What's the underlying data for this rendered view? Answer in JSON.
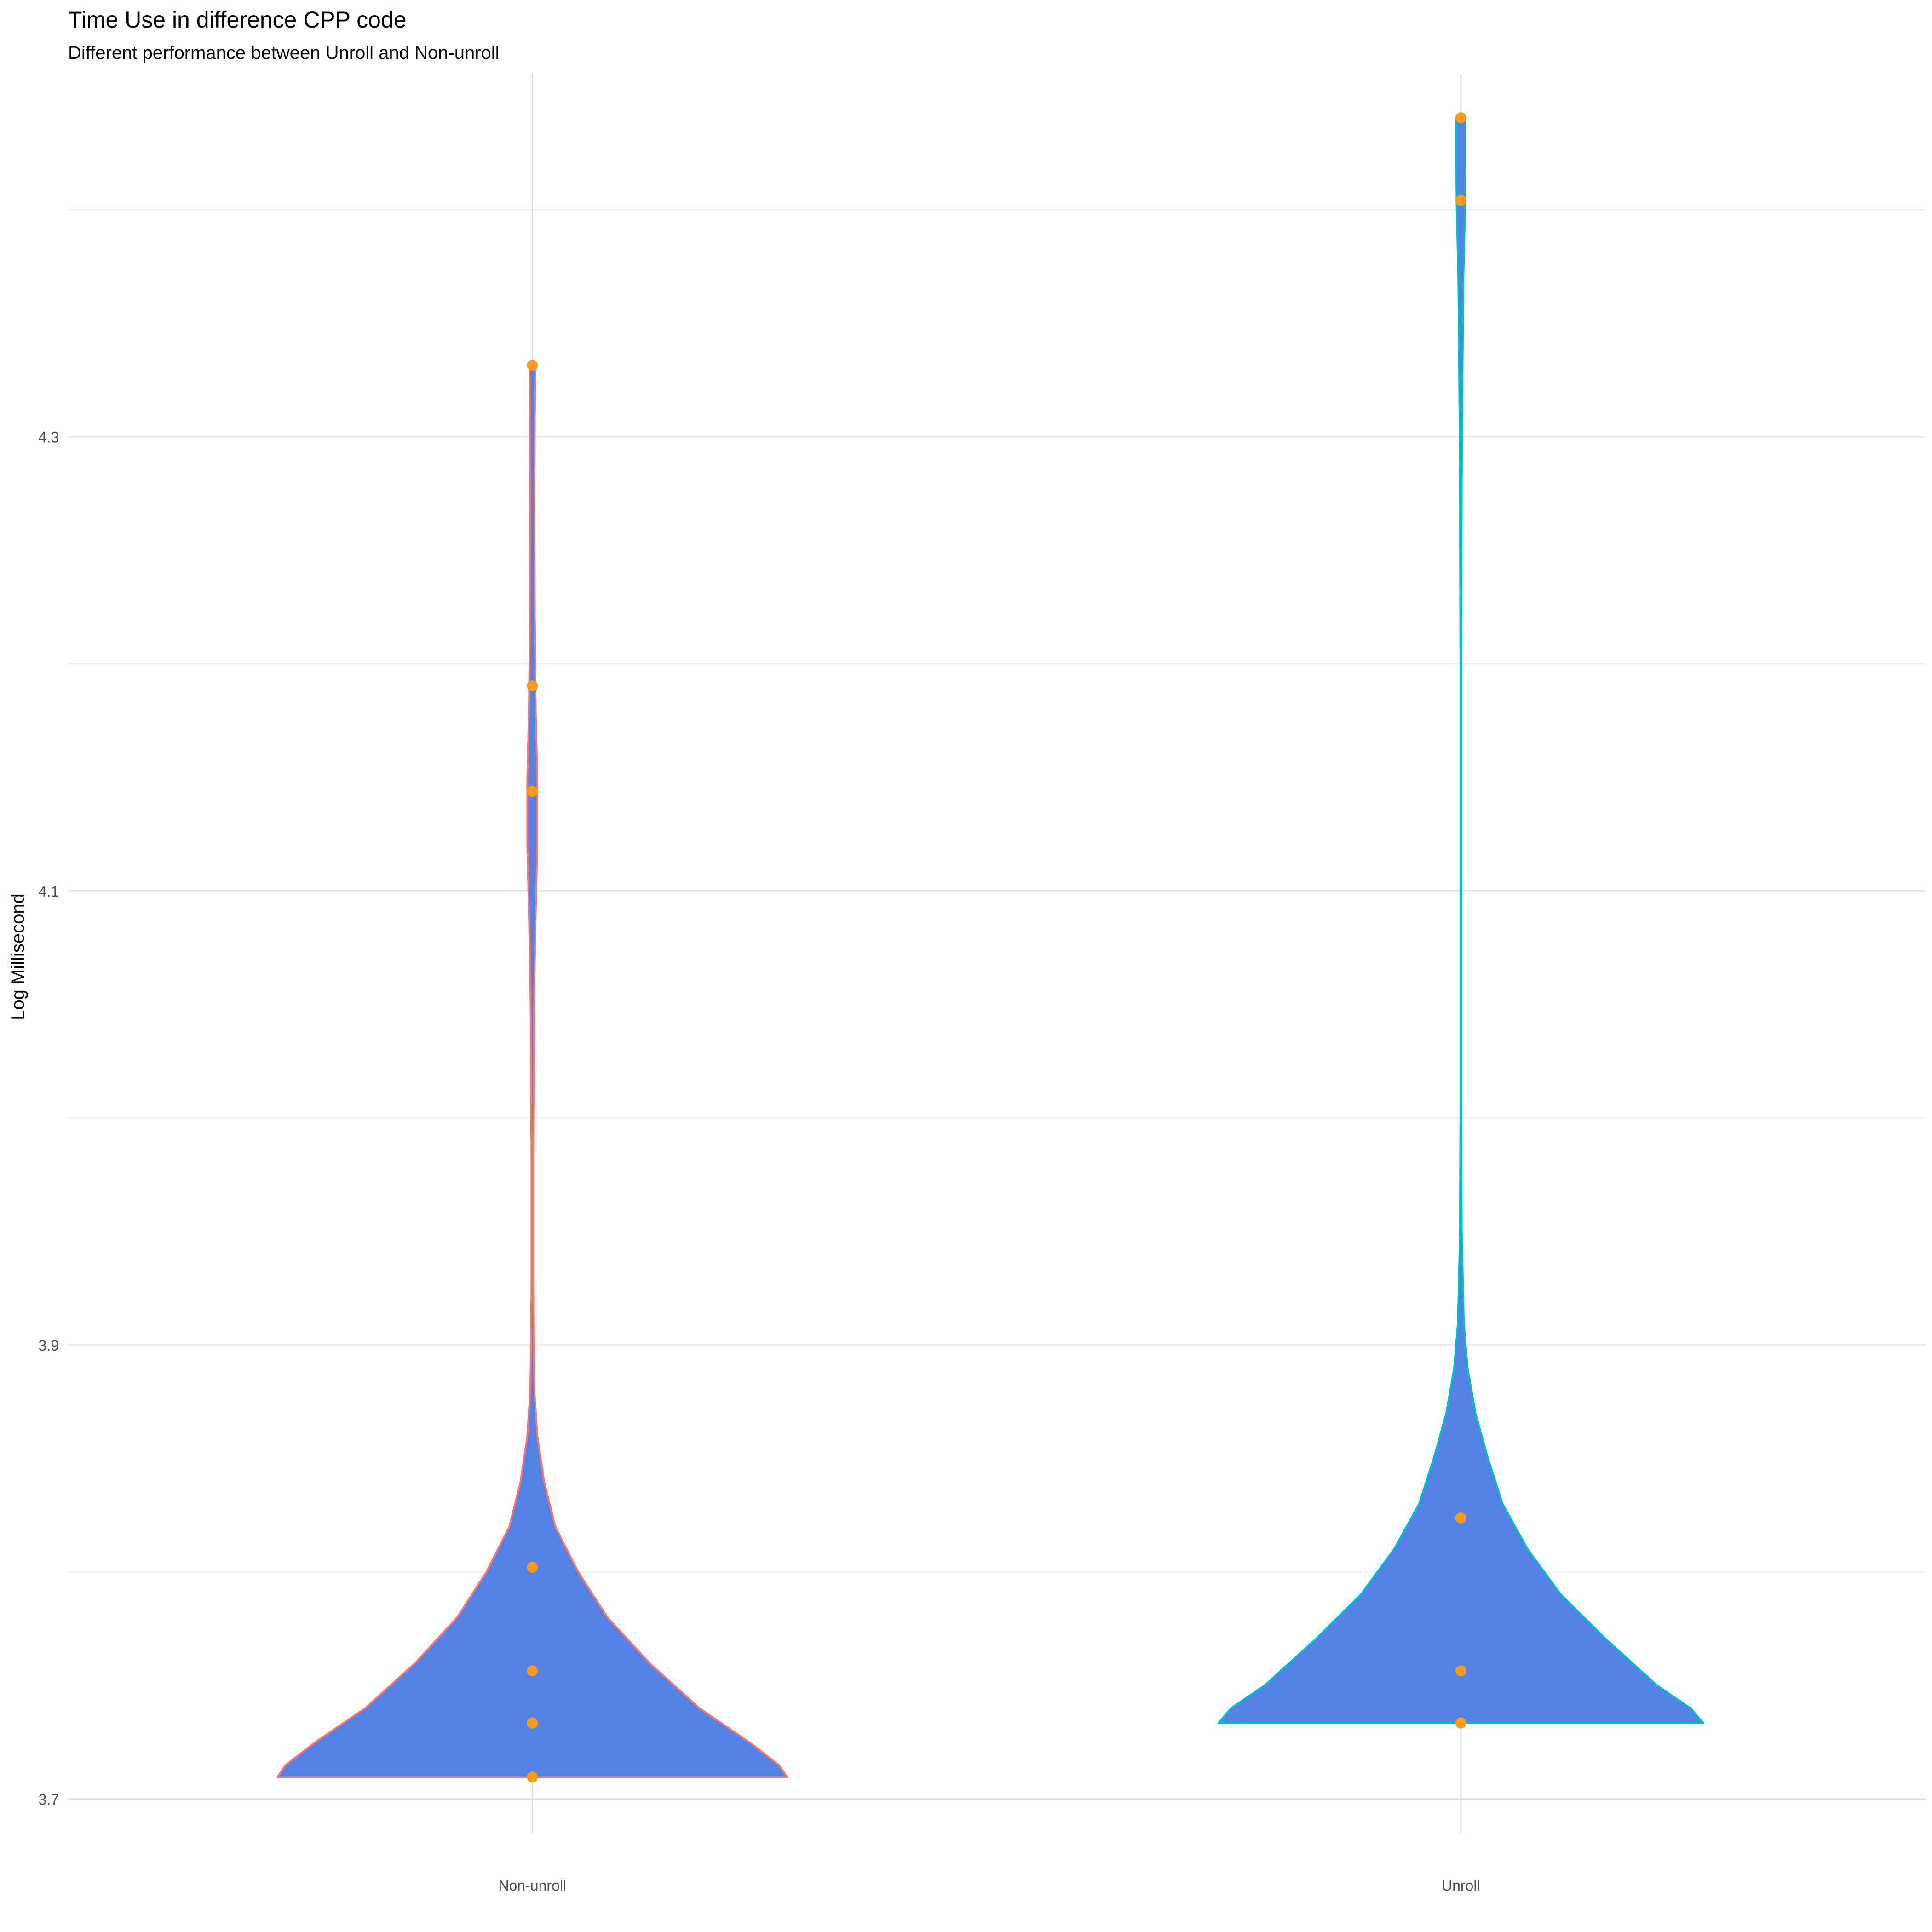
{
  "chart_data": {
    "type": "violin",
    "title": "Time Use in difference CPP code",
    "subtitle": "Different performance between Unroll and Non-unroll",
    "xlabel": "",
    "ylabel": "Log Millisecond",
    "categories": [
      "Non-unroll",
      "Unroll"
    ],
    "ylim": [
      3.685,
      4.46
    ],
    "yticks": [
      3.7,
      3.9,
      4.1,
      4.3
    ],
    "grid": true,
    "fill_color": "#5580E6",
    "outline_colors": [
      "#F8766D",
      "#00BFC4"
    ],
    "point_color": "#F79A1E",
    "series": [
      {
        "category": "Non-unroll",
        "points": [
          3.7097,
          3.7335,
          3.7565,
          3.8021,
          4.1439,
          4.1903,
          4.3315
        ],
        "density_profile": [
          [
            3.7097,
            0.61
          ],
          [
            3.715,
            0.59
          ],
          [
            3.725,
            0.52
          ],
          [
            3.74,
            0.4
          ],
          [
            3.76,
            0.28
          ],
          [
            3.78,
            0.18
          ],
          [
            3.8,
            0.11
          ],
          [
            3.82,
            0.055
          ],
          [
            3.84,
            0.028
          ],
          [
            3.86,
            0.012
          ],
          [
            3.88,
            0.005
          ],
          [
            3.9,
            0.003
          ],
          [
            3.93,
            0.002
          ],
          [
            3.98,
            0.002
          ],
          [
            4.05,
            0.004
          ],
          [
            4.09,
            0.008
          ],
          [
            4.12,
            0.012
          ],
          [
            4.15,
            0.012
          ],
          [
            4.18,
            0.008
          ],
          [
            4.22,
            0.006
          ],
          [
            4.27,
            0.005
          ],
          [
            4.31,
            0.006
          ],
          [
            4.3315,
            0.007
          ]
        ]
      },
      {
        "category": "Unroll",
        "points": [
          3.7335,
          3.7565,
          3.8238,
          4.4042,
          4.4405
        ],
        "density_profile": [
          [
            3.7335,
            0.58
          ],
          [
            3.74,
            0.55
          ],
          [
            3.75,
            0.47
          ],
          [
            3.77,
            0.35
          ],
          [
            3.79,
            0.24
          ],
          [
            3.81,
            0.16
          ],
          [
            3.83,
            0.1
          ],
          [
            3.85,
            0.065
          ],
          [
            3.87,
            0.035
          ],
          [
            3.89,
            0.016
          ],
          [
            3.91,
            0.007
          ],
          [
            3.95,
            0.002
          ],
          [
            4.0,
            0.001
          ],
          [
            4.1,
            0.001
          ],
          [
            4.2,
            0.001
          ],
          [
            4.28,
            0.002
          ],
          [
            4.33,
            0.004
          ],
          [
            4.37,
            0.006
          ],
          [
            4.4,
            0.01
          ],
          [
            4.42,
            0.011
          ],
          [
            4.4405,
            0.011
          ]
        ]
      }
    ]
  }
}
